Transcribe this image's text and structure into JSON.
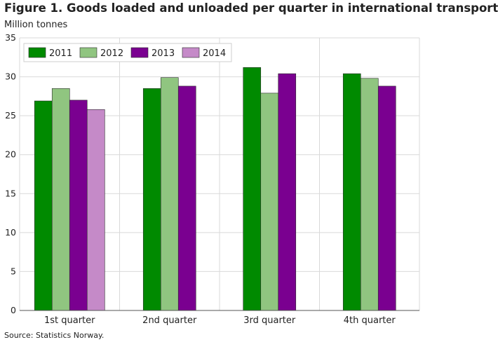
{
  "title": "Figure 1. Goods loaded and unloaded per quarter in international transport",
  "source": "Source: Statistics Norway.",
  "chart_data": {
    "type": "bar",
    "title": "Figure 1. Goods loaded and unloaded per quarter in international transport",
    "ylabel": "Million tonnes",
    "xlabel": "",
    "categories": [
      "1st quarter",
      "2nd quarter",
      "3rd quarter",
      "4th quarter"
    ],
    "ylim": [
      0,
      35
    ],
    "yticks": [
      0,
      5,
      10,
      15,
      20,
      25,
      30,
      35
    ],
    "grid": true,
    "legend_position": "top-left",
    "series": [
      {
        "name": "2011",
        "color": "#008a00",
        "values": [
          26.9,
          28.5,
          31.2,
          30.4
        ]
      },
      {
        "name": "2012",
        "color": "#90c580",
        "values": [
          28.5,
          29.9,
          27.9,
          29.8
        ]
      },
      {
        "name": "2013",
        "color": "#7a0090",
        "values": [
          27.0,
          28.8,
          30.4,
          28.8
        ]
      },
      {
        "name": "2014",
        "color": "#c58ac8",
        "values": [
          25.8,
          null,
          null,
          null
        ]
      }
    ]
  }
}
